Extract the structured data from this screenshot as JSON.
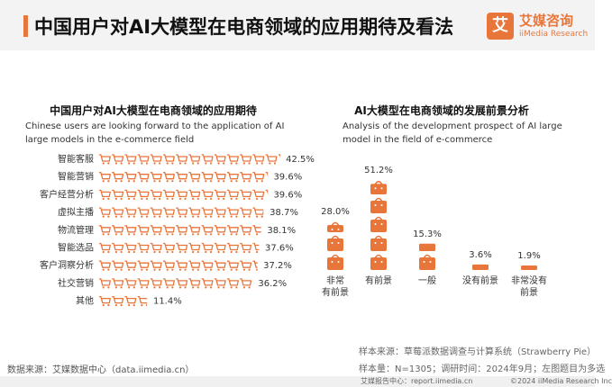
{
  "header": {
    "title": "中国用户对AI大模型在电商领域的应用期待及看法",
    "logo_mark": "艾",
    "logo_cn": "艾媒咨询",
    "logo_en": "iiMedia Research"
  },
  "left_panel": {
    "title": "中国用户对AI大模型在电商领域的应用期待",
    "desc": "Chinese users are looking forward to the application of AI large models in the e-commerce field"
  },
  "right_panel": {
    "title": "AI大模型在电商领域的发展前景分析",
    "desc": "Analysis of the development prospect of AI large model in the field of e-commerce"
  },
  "chart_data": [
    {
      "type": "bar",
      "orientation": "horizontal",
      "categories": [
        "智能客服",
        "智能营销",
        "客户经营分析",
        "虚拟主播",
        "物流管理",
        "智能选品",
        "客户洞察分析",
        "社交营销",
        "其他"
      ],
      "values": [
        42.5,
        39.6,
        39.6,
        38.7,
        38.1,
        37.6,
        37.2,
        36.2,
        11.4
      ],
      "value_labels": [
        "42.5%",
        "39.6%",
        "39.6%",
        "38.7%",
        "38.1%",
        "37.6%",
        "37.2%",
        "36.2%",
        "11.4%"
      ],
      "unit": "%",
      "icon": "shopping-cart-icon",
      "color": "#e8763b"
    },
    {
      "type": "bar",
      "orientation": "vertical",
      "categories": [
        "非常\n有前景",
        "有前景",
        "一般",
        "没有前景",
        "非常没有\n前景"
      ],
      "values": [
        28.0,
        51.2,
        15.3,
        3.6,
        1.9
      ],
      "value_labels": [
        "28.0%",
        "51.2%",
        "15.3%",
        "3.6%",
        "1.9%"
      ],
      "unit": "%",
      "icon": "shopping-bag-icon",
      "color": "#e8763b"
    }
  ],
  "notes": {
    "source_sample": "样本来源：草莓派数据调查与计算系统（Strawberry Pie）",
    "sample_size": "样本量：N=1305；调研时间：2024年9月；左图题目为多选",
    "data_source": "数据来源：艾媒数据中心（data.iimedia.cn）",
    "report_center": "艾媒报告中心：report.iimedia.cn",
    "copyright": "©2024  iiMedia Research  Inc"
  }
}
